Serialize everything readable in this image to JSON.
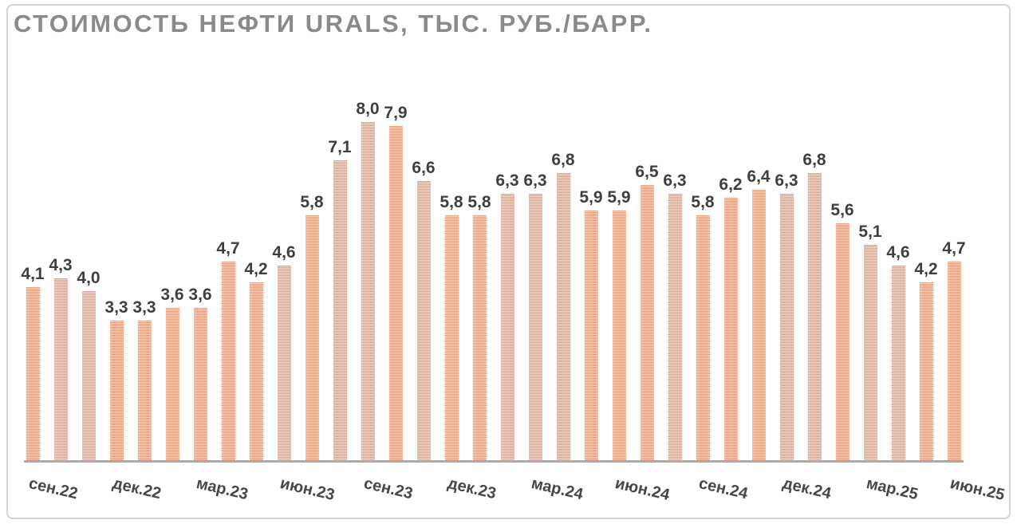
{
  "window": {
    "background_color": "#ffffff",
    "frame_border_color": "#d4d4d4"
  },
  "chart_data": {
    "type": "bar",
    "title": "СТОИМОСТЬ НЕФТИ URALS, ТЫС. РУБ./БАРР.",
    "title_color": "#8a8a8a",
    "values": [
      4.1,
      4.3,
      4.0,
      3.3,
      3.3,
      3.6,
      3.6,
      4.7,
      4.2,
      4.6,
      5.8,
      7.1,
      8.0,
      7.9,
      6.6,
      5.8,
      5.8,
      6.3,
      6.3,
      6.8,
      5.9,
      5.9,
      6.5,
      6.3,
      5.8,
      6.2,
      6.4,
      6.3,
      6.8,
      5.6,
      5.1,
      4.6,
      4.2,
      4.7
    ],
    "value_labels": [
      "4,1",
      "4,3",
      "4,0",
      "3,3",
      "3,3",
      "3,6",
      "3,6",
      "4,7",
      "4,2",
      "4,6",
      "5,8",
      "7,1",
      "8,0",
      "7,9",
      "6,6",
      "5,8",
      "5,8",
      "6,3",
      "6,3",
      "6,8",
      "5,9",
      "5,9",
      "6,5",
      "6,3",
      "5,8",
      "6,2",
      "6,4",
      "6,3",
      "6,8",
      "5,6",
      "5,1",
      "4,6",
      "4,2",
      "4,7"
    ],
    "decimal_separator": ",",
    "x_tick_labels": [
      "сен.22",
      "дек.22",
      "мар.23",
      "июн.23",
      "сен.23",
      "дек.23",
      "мар.24",
      "июн.24",
      "сен.24",
      "дек.24",
      "мар.25",
      "июн.25"
    ],
    "x_tick_every": 3,
    "ylim": [
      0,
      8.5
    ],
    "grid": false,
    "legend": "none",
    "y_axis_visible": false,
    "bar_pattern": "horizontal-stripes",
    "bar_color_main": "#eba184",
    "bar_color_light": "#f7d2c2",
    "axis_line_color": "#ababab",
    "value_label_color": "#3f3f3f",
    "tick_label_color": "#474747"
  }
}
